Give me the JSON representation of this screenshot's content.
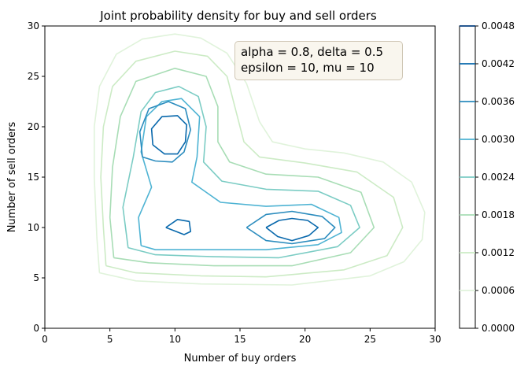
{
  "chart_data": {
    "type": "contour",
    "title": "Joint probability density for buy and sell orders",
    "xlabel": "Number of buy orders",
    "ylabel": "Number of sell orders",
    "xlim": [
      0,
      30
    ],
    "ylim": [
      0,
      30
    ],
    "x_ticks": [
      "0",
      "5",
      "10",
      "15",
      "20",
      "25",
      "30"
    ],
    "y_ticks": [
      "0",
      "5",
      "10",
      "15",
      "20",
      "25",
      "30"
    ],
    "annotation": [
      "alpha = 0.8, delta = 0.5",
      "epsilon = 10, mu = 10"
    ],
    "colorbar": {
      "ticks": [
        "0.0000",
        "0.0006",
        "0.0012",
        "0.0018",
        "0.0024",
        "0.0030",
        "0.0036",
        "0.0042",
        "0.0048"
      ],
      "levels": [
        0.0006,
        0.0012,
        0.0018,
        0.0024,
        0.003,
        0.0036,
        0.0042,
        0.0048
      ]
    },
    "colors": [
      "#e0f3db",
      "#ccebc5",
      "#a8ddb5",
      "#7bccc4",
      "#4eb3d3",
      "#2b8cbe",
      "#0868ac",
      "#084081"
    ],
    "contours": [
      {
        "level": 0.0006,
        "lines": [
          [
            [
              4.2,
              5.5
            ],
            [
              4.0,
              9
            ],
            [
              3.8,
              15
            ],
            [
              3.8,
              20
            ],
            [
              4.2,
              24
            ],
            [
              5.5,
              27.2
            ],
            [
              7.5,
              28.7
            ],
            [
              10,
              29.2
            ],
            [
              12,
              28.8
            ],
            [
              14,
              27.3
            ],
            [
              15.5,
              24.3
            ],
            [
              16.5,
              20.5
            ],
            [
              17.5,
              18.5
            ],
            [
              20,
              17.8
            ],
            [
              23,
              17.4
            ],
            [
              26,
              16.5
            ],
            [
              28.2,
              14.5
            ],
            [
              29.2,
              11.5
            ],
            [
              29,
              8.8
            ],
            [
              27.6,
              6.6
            ],
            [
              25,
              5.2
            ],
            [
              19,
              4.3
            ],
            [
              12,
              4.4
            ],
            [
              7,
              4.7
            ],
            [
              4.2,
              5.5
            ]
          ]
        ]
      },
      {
        "level": 0.0012,
        "lines": [
          [
            [
              4.7,
              6.2
            ],
            [
              4.5,
              10
            ],
            [
              4.3,
              15
            ],
            [
              4.5,
              20
            ],
            [
              5.2,
              24
            ],
            [
              7,
              26.5
            ],
            [
              10,
              27.5
            ],
            [
              12.5,
              27
            ],
            [
              14,
              25
            ],
            [
              14.6,
              22
            ],
            [
              15.3,
              18.5
            ],
            [
              16.5,
              17
            ],
            [
              20,
              16.4
            ],
            [
              24,
              15.5
            ],
            [
              26.8,
              13
            ],
            [
              27.5,
              10
            ],
            [
              26.3,
              7.2
            ],
            [
              23,
              5.8
            ],
            [
              17,
              5.1
            ],
            [
              12,
              5.2
            ],
            [
              7,
              5.5
            ],
            [
              4.7,
              6.2
            ]
          ]
        ]
      },
      {
        "level": 0.0018,
        "lines": [
          [
            [
              5.3,
              7
            ],
            [
              5,
              11
            ],
            [
              5.2,
              16
            ],
            [
              5.8,
              21
            ],
            [
              7,
              24.5
            ],
            [
              10,
              25.8
            ],
            [
              12.4,
              25
            ],
            [
              13.3,
              22
            ],
            [
              13.3,
              18.5
            ],
            [
              14.2,
              16.5
            ],
            [
              17,
              15.3
            ],
            [
              21,
              15
            ],
            [
              24.3,
              13.5
            ],
            [
              25.3,
              10
            ],
            [
              23.5,
              7.5
            ],
            [
              19,
              6.2
            ],
            [
              13,
              6.2
            ],
            [
              8,
              6.5
            ],
            [
              5.3,
              7
            ]
          ]
        ]
      },
      {
        "level": 0.0024,
        "lines": [
          [
            [
              6.4,
              8
            ],
            [
              6,
              12
            ],
            [
              6.8,
              17
            ],
            [
              7.4,
              21.5
            ],
            [
              8.5,
              23.4
            ],
            [
              10.3,
              24
            ],
            [
              11.8,
              23
            ],
            [
              12.4,
              20
            ],
            [
              12.2,
              16.5
            ],
            [
              13.6,
              14.6
            ],
            [
              17,
              13.8
            ],
            [
              21,
              13.6
            ],
            [
              23.5,
              12.2
            ],
            [
              24.2,
              10
            ],
            [
              22.5,
              8.1
            ],
            [
              18,
              7
            ],
            [
              13,
              7.1
            ],
            [
              8.5,
              7.3
            ],
            [
              6.4,
              8
            ]
          ]
        ]
      },
      {
        "level": 0.003,
        "lines": [
          [
            [
              7.4,
              8.2
            ],
            [
              7.2,
              11
            ],
            [
              8.2,
              14
            ],
            [
              7.4,
              17.5
            ],
            [
              7.8,
              21
            ],
            [
              9,
              22.5
            ],
            [
              10.5,
              22.8
            ],
            [
              11.9,
              21
            ],
            [
              11.7,
              17
            ],
            [
              11.3,
              14.5
            ],
            [
              13.5,
              12.5
            ],
            [
              17,
              12.1
            ],
            [
              20.5,
              12.3
            ],
            [
              22.6,
              11
            ],
            [
              22.8,
              9.5
            ],
            [
              21,
              8.3
            ],
            [
              17,
              7.8
            ],
            [
              12.5,
              7.8
            ],
            [
              8.5,
              7.8
            ],
            [
              7.4,
              8.2
            ]
          ]
        ]
      },
      {
        "level": 0.0036,
        "lines": [
          [
            [
              7.5,
              17
            ],
            [
              7.3,
              19.5
            ],
            [
              8,
              21.8
            ],
            [
              9.5,
              22.5
            ],
            [
              10.8,
              21.8
            ],
            [
              11.2,
              19.7
            ],
            [
              10.7,
              17.5
            ],
            [
              9.8,
              16.5
            ],
            [
              8.5,
              16.6
            ],
            [
              7.5,
              17
            ]
          ],
          [
            [
              15.5,
              10
            ],
            [
              17,
              11.3
            ],
            [
              19,
              11.6
            ],
            [
              21.3,
              11.1
            ],
            [
              22.3,
              10
            ],
            [
              21.5,
              8.9
            ],
            [
              19,
              8.4
            ],
            [
              17,
              8.7
            ],
            [
              15.5,
              10
            ]
          ]
        ]
      },
      {
        "level": 0.0042,
        "lines": [
          [
            [
              8.3,
              18.2
            ],
            [
              8.2,
              19.8
            ],
            [
              9,
              21
            ],
            [
              10.2,
              21.1
            ],
            [
              10.9,
              20.2
            ],
            [
              10.8,
              18.5
            ],
            [
              10.2,
              17.3
            ],
            [
              9.2,
              17.3
            ],
            [
              8.3,
              18.2
            ]
          ],
          [
            [
              9.3,
              10
            ],
            [
              10.2,
              10.8
            ],
            [
              11.1,
              10.6
            ],
            [
              11.2,
              9.6
            ],
            [
              10.7,
              9.3
            ],
            [
              10.1,
              9.6
            ],
            [
              9.3,
              10
            ]
          ],
          [
            [
              17,
              10
            ],
            [
              18,
              10.7
            ],
            [
              19,
              10.9
            ],
            [
              20.2,
              10.7
            ],
            [
              21,
              10
            ],
            [
              20.3,
              9.2
            ],
            [
              19,
              8.7
            ],
            [
              17.9,
              9.1
            ],
            [
              17,
              10
            ]
          ]
        ]
      }
    ]
  }
}
